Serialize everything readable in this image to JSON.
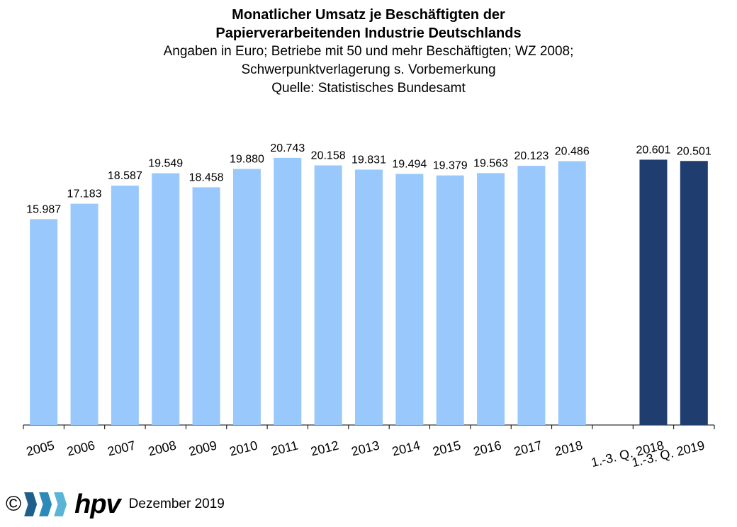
{
  "title": [
    "Monatlicher Umsatz je Beschäftigten der",
    "Papierverarbeitenden Industrie Deutschlands"
  ],
  "subtitle": [
    "Angaben in Euro; Betriebe mit 50 und mehr Beschäftigten; WZ 2008;",
    "Schwerpunktverlagerung s. Vorbemerkung",
    "Quelle: Statistisches Bundesamt"
  ],
  "chart_data": {
    "type": "bar",
    "categories": [
      "2005",
      "2006",
      "2007",
      "2008",
      "2009",
      "2010",
      "2011",
      "2012",
      "2013",
      "2014",
      "2015",
      "2016",
      "2017",
      "2018",
      "",
      "1.-3. Q. 2018",
      "1.-3. Q. 2019"
    ],
    "values": [
      15987,
      17183,
      18587,
      19549,
      18458,
      19880,
      20743,
      20158,
      19831,
      19494,
      19379,
      19563,
      20123,
      20486,
      null,
      20601,
      20501
    ],
    "value_labels": [
      "15.987",
      "17.183",
      "18.587",
      "19.549",
      "18.458",
      "19.880",
      "20.743",
      "20.158",
      "19.831",
      "19.494",
      "19.379",
      "19.563",
      "20.123",
      "20.486",
      "",
      "20.601",
      "20.501"
    ],
    "xlabel": "",
    "ylabel": "",
    "ylim": [
      0,
      22000
    ],
    "grid": false,
    "colors": {
      "annual": "#99c9fc",
      "quarterly": "#1f3d6e"
    }
  },
  "footer": {
    "copyright": "©",
    "logo_text": "hpv",
    "logo_colors": [
      "#1f5f8b",
      "#2b8ab8",
      "#5ab4d6"
    ],
    "date": "Dezember 2019"
  }
}
